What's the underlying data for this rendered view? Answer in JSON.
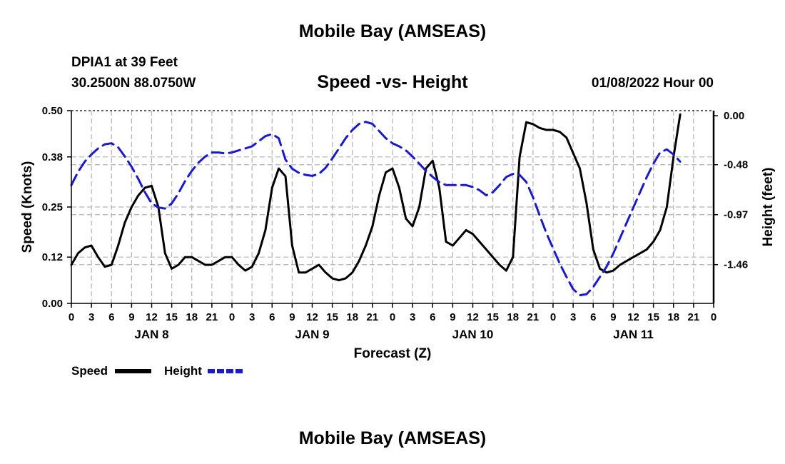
{
  "header": {
    "title": "Mobile Bay (AMSEAS)",
    "station": "DPIA1 at 39 Feet",
    "coords": "30.2500N  88.0750W",
    "subtitle": "Speed -vs- Height",
    "datestamp": "01/08/2022 Hour 00"
  },
  "footer": {
    "title": "Mobile Bay (AMSEAS)"
  },
  "chart_data": {
    "type": "line",
    "title": "Speed -vs- Height",
    "xlabel": "Forecast (Z)",
    "ylabel": "Speed (Knots)",
    "y2label": "Height (feet)",
    "x_range_hours": [
      0,
      96
    ],
    "ylim": [
      0,
      0.5
    ],
    "y2lim": [
      -1.84,
      0.05
    ],
    "yticks": [
      "0.00",
      "0.12",
      "0.25",
      "0.38",
      "0.50"
    ],
    "yticks_values": [
      0,
      0.12,
      0.25,
      0.38,
      0.5
    ],
    "y2ticks": [
      "0.00",
      "-0.48",
      "-0.97",
      "-1.46"
    ],
    "y2ticks_values": [
      0,
      -0.48,
      -0.97,
      -1.46
    ],
    "xtick_labels": [
      "0",
      "3",
      "6",
      "9",
      "12",
      "15",
      "18",
      "21",
      "0",
      "3",
      "6",
      "9",
      "12",
      "15",
      "18",
      "21",
      "0",
      "3",
      "6",
      "9",
      "12",
      "15",
      "18",
      "21",
      "0",
      "3",
      "6",
      "9",
      "12",
      "15",
      "18",
      "21",
      "0"
    ],
    "day_labels": [
      {
        "label": "JAN 8",
        "hour": 12
      },
      {
        "label": "JAN 9",
        "hour": 36
      },
      {
        "label": "JAN 10",
        "hour": 60
      },
      {
        "label": "JAN 11",
        "hour": 84
      }
    ],
    "legend": [
      {
        "name": "Speed",
        "color": "#000000",
        "style": "solid"
      },
      {
        "name": "Height",
        "color": "#1a1acc",
        "style": "dashed"
      }
    ],
    "series": [
      {
        "name": "Speed",
        "axis": "left",
        "color": "#000000",
        "points": [
          [
            0,
            0.1
          ],
          [
            1,
            0.13
          ],
          [
            2,
            0.145
          ],
          [
            3,
            0.15
          ],
          [
            4,
            0.12
          ],
          [
            5,
            0.095
          ],
          [
            6,
            0.1
          ],
          [
            7,
            0.15
          ],
          [
            8,
            0.21
          ],
          [
            9,
            0.25
          ],
          [
            10,
            0.28
          ],
          [
            11,
            0.3
          ],
          [
            12,
            0.305
          ],
          [
            13,
            0.25
          ],
          [
            14,
            0.13
          ],
          [
            15,
            0.09
          ],
          [
            16,
            0.1
          ],
          [
            17,
            0.12
          ],
          [
            18,
            0.12
          ],
          [
            19,
            0.11
          ],
          [
            20,
            0.1
          ],
          [
            21,
            0.1
          ],
          [
            22,
            0.11
          ],
          [
            23,
            0.12
          ],
          [
            24,
            0.12
          ],
          [
            25,
            0.1
          ],
          [
            26,
            0.085
          ],
          [
            27,
            0.095
          ],
          [
            28,
            0.13
          ],
          [
            29,
            0.19
          ],
          [
            30,
            0.3
          ],
          [
            31,
            0.35
          ],
          [
            32,
            0.33
          ],
          [
            33,
            0.15
          ],
          [
            34,
            0.08
          ],
          [
            35,
            0.08
          ],
          [
            36,
            0.09
          ],
          [
            37,
            0.1
          ],
          [
            38,
            0.08
          ],
          [
            39,
            0.065
          ],
          [
            40,
            0.06
          ],
          [
            41,
            0.065
          ],
          [
            42,
            0.08
          ],
          [
            43,
            0.11
          ],
          [
            44,
            0.15
          ],
          [
            45,
            0.2
          ],
          [
            46,
            0.28
          ],
          [
            47,
            0.34
          ],
          [
            48,
            0.35
          ],
          [
            49,
            0.3
          ],
          [
            50,
            0.22
          ],
          [
            51,
            0.2
          ],
          [
            52,
            0.25
          ],
          [
            53,
            0.35
          ],
          [
            54,
            0.37
          ],
          [
            55,
            0.3
          ],
          [
            56,
            0.16
          ],
          [
            57,
            0.15
          ],
          [
            58,
            0.17
          ],
          [
            59,
            0.19
          ],
          [
            60,
            0.18
          ],
          [
            61,
            0.16
          ],
          [
            62,
            0.14
          ],
          [
            63,
            0.12
          ],
          [
            64,
            0.1
          ],
          [
            65,
            0.085
          ],
          [
            66,
            0.12
          ],
          [
            67,
            0.38
          ],
          [
            68,
            0.47
          ],
          [
            69,
            0.465
          ],
          [
            70,
            0.455
          ],
          [
            71,
            0.45
          ],
          [
            72,
            0.45
          ],
          [
            73,
            0.445
          ],
          [
            74,
            0.43
          ],
          [
            75,
            0.39
          ],
          [
            76,
            0.35
          ],
          [
            77,
            0.26
          ],
          [
            78,
            0.14
          ],
          [
            79,
            0.09
          ],
          [
            80,
            0.08
          ],
          [
            81,
            0.085
          ],
          [
            82,
            0.1
          ],
          [
            83,
            0.11
          ],
          [
            84,
            0.12
          ],
          [
            85,
            0.13
          ],
          [
            86,
            0.14
          ],
          [
            87,
            0.16
          ],
          [
            88,
            0.19
          ],
          [
            89,
            0.25
          ],
          [
            90,
            0.38
          ],
          [
            91,
            0.49
          ]
        ]
      },
      {
        "name": "Height",
        "axis": "right",
        "color": "#1a1acc",
        "points": [
          [
            0,
            -0.68
          ],
          [
            1,
            -0.55
          ],
          [
            2,
            -0.45
          ],
          [
            3,
            -0.38
          ],
          [
            4,
            -0.32
          ],
          [
            5,
            -0.28
          ],
          [
            6,
            -0.27
          ],
          [
            7,
            -0.31
          ],
          [
            8,
            -0.4
          ],
          [
            9,
            -0.5
          ],
          [
            10,
            -0.62
          ],
          [
            11,
            -0.75
          ],
          [
            12,
            -0.86
          ],
          [
            13,
            -0.9
          ],
          [
            14,
            -0.91
          ],
          [
            15,
            -0.86
          ],
          [
            16,
            -0.76
          ],
          [
            17,
            -0.64
          ],
          [
            18,
            -0.54
          ],
          [
            19,
            -0.46
          ],
          [
            20,
            -0.4
          ],
          [
            21,
            -0.36
          ],
          [
            22,
            -0.36
          ],
          [
            23,
            -0.37
          ],
          [
            24,
            -0.36
          ],
          [
            25,
            -0.34
          ],
          [
            26,
            -0.32
          ],
          [
            27,
            -0.3
          ],
          [
            28,
            -0.25
          ],
          [
            29,
            -0.2
          ],
          [
            30,
            -0.18
          ],
          [
            31,
            -0.22
          ],
          [
            32,
            -0.43
          ],
          [
            33,
            -0.52
          ],
          [
            34,
            -0.56
          ],
          [
            35,
            -0.58
          ],
          [
            36,
            -0.59
          ],
          [
            37,
            -0.57
          ],
          [
            38,
            -0.51
          ],
          [
            39,
            -0.42
          ],
          [
            40,
            -0.32
          ],
          [
            41,
            -0.22
          ],
          [
            42,
            -0.14
          ],
          [
            43,
            -0.08
          ],
          [
            44,
            -0.06
          ],
          [
            45,
            -0.08
          ],
          [
            46,
            -0.15
          ],
          [
            47,
            -0.22
          ],
          [
            48,
            -0.27
          ],
          [
            49,
            -0.3
          ],
          [
            50,
            -0.34
          ],
          [
            51,
            -0.4
          ],
          [
            52,
            -0.47
          ],
          [
            53,
            -0.54
          ],
          [
            54,
            -0.6
          ],
          [
            55,
            -0.65
          ],
          [
            56,
            -0.68
          ],
          [
            57,
            -0.68
          ],
          [
            58,
            -0.68
          ],
          [
            59,
            -0.68
          ],
          [
            60,
            -0.7
          ],
          [
            61,
            -0.73
          ],
          [
            62,
            -0.78
          ],
          [
            63,
            -0.75
          ],
          [
            64,
            -0.68
          ],
          [
            65,
            -0.6
          ],
          [
            66,
            -0.57
          ],
          [
            67,
            -0.58
          ],
          [
            68,
            -0.65
          ],
          [
            69,
            -0.8
          ],
          [
            70,
            -0.98
          ],
          [
            71,
            -1.15
          ],
          [
            72,
            -1.3
          ],
          [
            73,
            -1.45
          ],
          [
            74,
            -1.58
          ],
          [
            75,
            -1.7
          ],
          [
            76,
            -1.76
          ],
          [
            77,
            -1.75
          ],
          [
            78,
            -1.68
          ],
          [
            79,
            -1.58
          ],
          [
            80,
            -1.48
          ],
          [
            81,
            -1.35
          ],
          [
            82,
            -1.2
          ],
          [
            83,
            -1.05
          ],
          [
            84,
            -0.9
          ],
          [
            85,
            -0.75
          ],
          [
            86,
            -0.6
          ],
          [
            87,
            -0.47
          ],
          [
            88,
            -0.36
          ],
          [
            89,
            -0.33
          ],
          [
            90,
            -0.38
          ],
          [
            91,
            -0.45
          ]
        ]
      }
    ]
  }
}
